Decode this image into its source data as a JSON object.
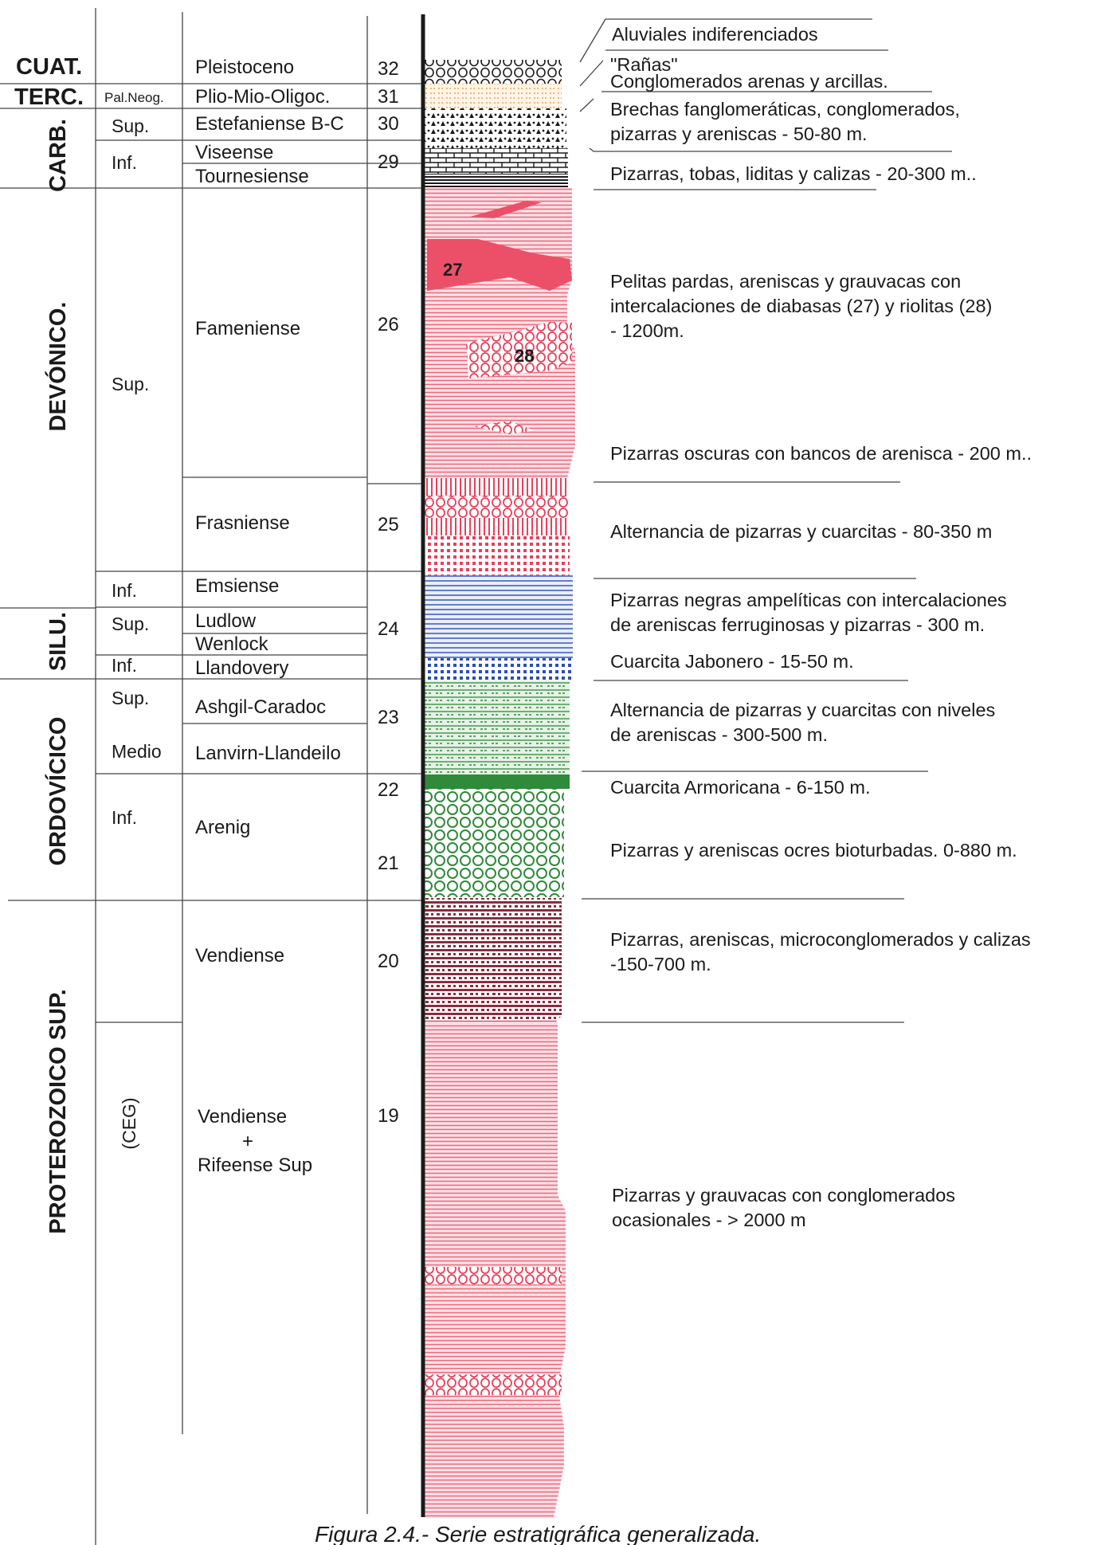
{
  "colors": {
    "pink": "#ec6a7d",
    "pink_light": "#f3a2ae",
    "red_strong": "#e9405a",
    "blue": "#2b4fb6",
    "green": "#2f8a3a",
    "maroon": "#8c2c3f",
    "orange": "#f1a24c",
    "black": "#1a1a1a"
  },
  "eras": {
    "cuat": "CUAT.",
    "terc": "TERC.",
    "carb": "CARB.",
    "devonico": "DEVÓNICO.",
    "silu": "SILU.",
    "ordovicico": "ORDOVÍCICO",
    "proterozoico": "PROTEROZOICO SUP."
  },
  "subdivisions": {
    "pal_neog": "Pal.Neog.",
    "carb_sup": "Sup.",
    "carb_inf": "Inf.",
    "dev_sup": "Sup.",
    "dev_inf": "Inf.",
    "silu_sup": "Sup.",
    "silu_inf": "Inf.",
    "ord_sup": "Sup.",
    "ord_medio": "Medio",
    "ord_inf": "Inf.",
    "ceg": "(CEG)"
  },
  "stages": {
    "pleistoceno": "Pleistoceno",
    "plio": "Plio-Mio-Oligoc.",
    "estefaniense": "Estefaniense B-C",
    "viseense": "Viseense",
    "tournesiense": "Tournesiense",
    "fameniense": "Fameniense",
    "frasniense": "Frasniense",
    "emsiense": "Emsiense",
    "ludlow": "Ludlow",
    "wenlock": "Wenlock",
    "llandovery": "Llandovery",
    "ashgil": "Ashgil-Caradoc",
    "lanvirn": "Lanvirn-Llandeilo",
    "arenig": "Arenig",
    "vendiense": "Vendiense",
    "vendiense2": "Vendiense",
    "plus": "+",
    "rifeense": "Rifeense Sup"
  },
  "numbers": {
    "n32": "32",
    "n31": "31",
    "n30": "30",
    "n29": "29",
    "n26": "26",
    "n25": "25",
    "n24": "24",
    "n23": "23",
    "n22": "22",
    "n21": "21",
    "n20": "20",
    "n19": "19"
  },
  "column_labels": {
    "l27": "27",
    "l28": "28"
  },
  "descriptions": {
    "aluviales": "Aluviales indiferenciados",
    "ranas": "\"Rañas\"",
    "conglomerados": "Conglomerados arenas y arcillas.",
    "brechas_1": "Brechas fanglomeráticas, conglomerados,",
    "brechas_2": "pizarras y areniscas - 50-80 m.",
    "pizarras_tobas": "Pizarras, tobas, liditas y calizas - 20-300 m..",
    "pelitas_1": "Pelitas pardas, areniscas y grauvacas con",
    "pelitas_2": "intercalaciones de diabasas (27) y riolitas (28)",
    "pelitas_3": "- 1200m.",
    "pizarras_oscuras": "Pizarras oscuras con bancos de arenisca - 200 m..",
    "alternancia_1": "Alternancia de pizarras y cuarcitas - 80-350 m",
    "negras_1": "Pizarras negras ampelíticas con intercalaciones",
    "negras_2": "de areniscas ferruginosas y pizarras - 300 m.",
    "jabonero": "Cuarcita Jabonero  - 15-50 m.",
    "alternancia2_1": "Alternancia de pizarras y cuarcitas con niveles",
    "alternancia2_2": "de areniscas - 300-500 m.",
    "armoricana": "Cuarcita Armoricana - 6-150 m.",
    "ocres": "Pizarras y areniscas ocres bioturbadas. 0-880 m.",
    "micro_1": "Pizarras, areniscas, microconglomerados y calizas",
    "micro_2": "-150-700 m.",
    "grauvacas_1": "Pizarras y grauvacas con conglomerados",
    "grauvacas_2": "ocasionales -  > 2000 m"
  },
  "caption": "Figura 2.4.- Serie estratigráfica generalizada."
}
